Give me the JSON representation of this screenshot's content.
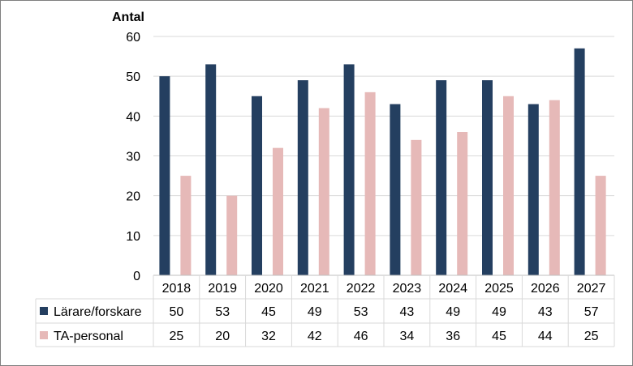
{
  "chart_data": {
    "type": "bar",
    "ylabel": "Antal",
    "ylim": [
      0,
      60
    ],
    "yticks": [
      0,
      10,
      20,
      30,
      40,
      50,
      60
    ],
    "grid": true,
    "legend": "data-table",
    "categories": [
      "2018",
      "2019",
      "2020",
      "2021",
      "2022",
      "2023",
      "2024",
      "2025",
      "2026",
      "2027"
    ],
    "series": [
      {
        "name": "Lärare/forskare",
        "color": "#243f60",
        "values": [
          50,
          53,
          45,
          49,
          53,
          43,
          49,
          49,
          43,
          57
        ]
      },
      {
        "name": "TA-personal",
        "color": "#e6b9b8",
        "values": [
          25,
          20,
          32,
          42,
          46,
          34,
          36,
          45,
          44,
          25
        ]
      }
    ]
  }
}
